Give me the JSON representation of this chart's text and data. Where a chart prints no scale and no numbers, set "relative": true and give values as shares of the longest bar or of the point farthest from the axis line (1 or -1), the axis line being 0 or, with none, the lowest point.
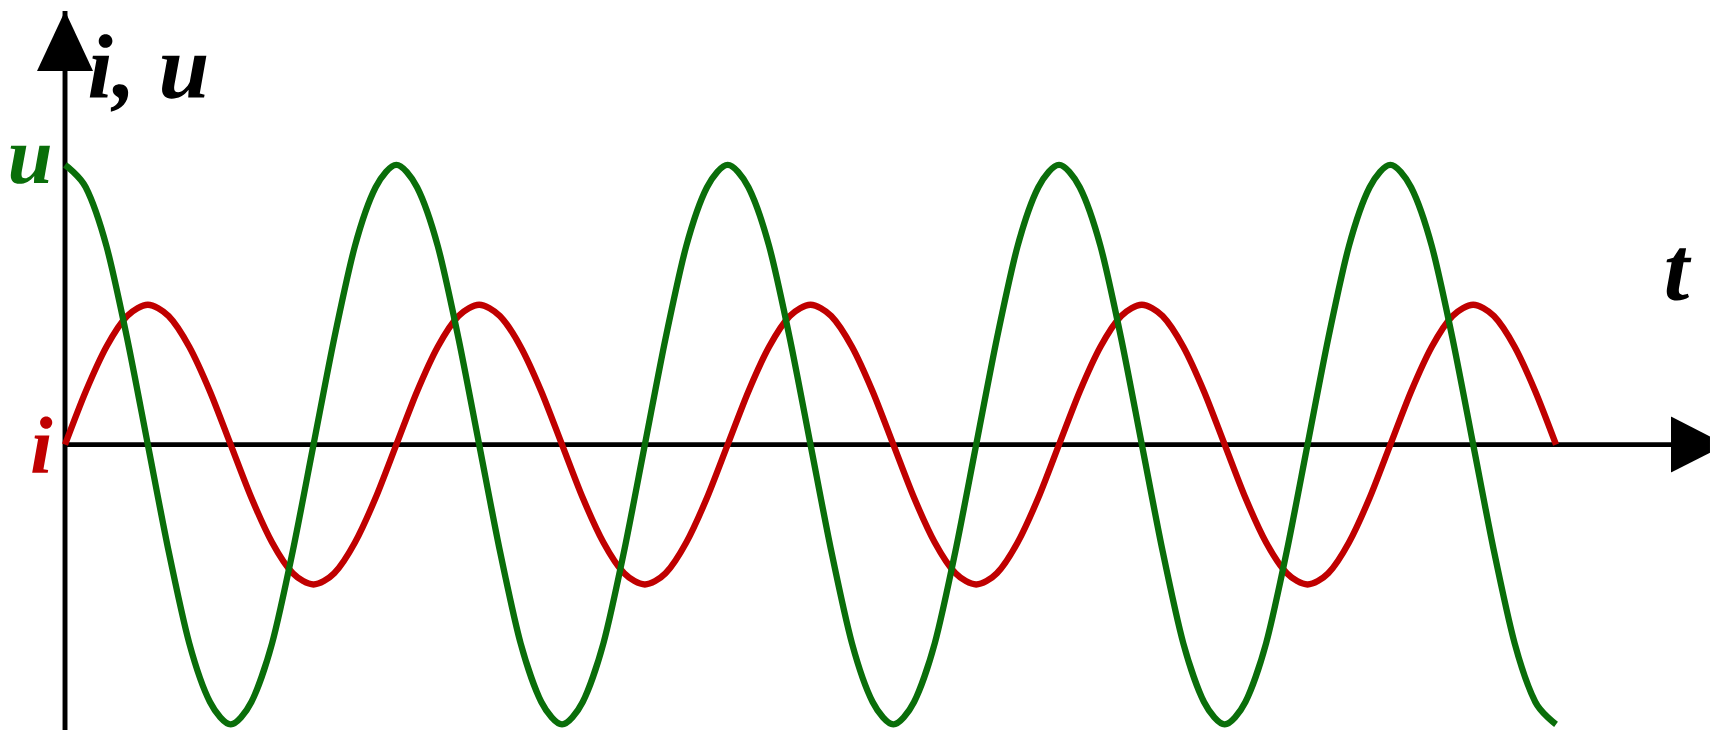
{
  "chart_data": {
    "type": "line",
    "relative": true,
    "xlabel": "t",
    "ylabel": "i, u",
    "marker": "none",
    "line_style": "solid",
    "categories": [
      null,
      null,
      null,
      null,
      null,
      null,
      null,
      null,
      null,
      null,
      null,
      null,
      null,
      null,
      null,
      null,
      null,
      null,
      null,
      null,
      null,
      null,
      null,
      null,
      null,
      null,
      null,
      null,
      null,
      null,
      null,
      null,
      null,
      null,
      null,
      null,
      null,
      null,
      null,
      null,
      null,
      null,
      null,
      null,
      null,
      null,
      null,
      null,
      null,
      null,
      null,
      null,
      null,
      null,
      null,
      null,
      null,
      null,
      null,
      null,
      null,
      null,
      null,
      null,
      null,
      null,
      null,
      null,
      null,
      null,
      null,
      null,
      null
    ],
    "series": [
      {
        "name": "i",
        "color": "#c00000",
        "values": [
          0,
          0.19,
          0.35,
          0.46,
          0.5,
          0.46,
          0.35,
          0.19,
          0,
          -0.19,
          -0.35,
          -0.46,
          -0.5,
          -0.46,
          -0.35,
          -0.19,
          0,
          0.19,
          0.35,
          0.46,
          0.5,
          0.46,
          0.35,
          0.19,
          0,
          -0.19,
          -0.35,
          -0.46,
          -0.5,
          -0.46,
          -0.35,
          -0.19,
          0,
          0.19,
          0.35,
          0.46,
          0.5,
          0.46,
          0.35,
          0.19,
          0,
          -0.19,
          -0.35,
          -0.46,
          -0.5,
          -0.46,
          -0.35,
          -0.19,
          0,
          0.19,
          0.35,
          0.46,
          0.5,
          0.46,
          0.35,
          0.19,
          0,
          -0.19,
          -0.35,
          -0.46,
          -0.5,
          -0.46,
          -0.35,
          -0.19,
          0,
          0.19,
          0.35,
          0.46,
          0.5,
          0.46,
          0.35,
          0.19,
          0
        ]
      },
      {
        "name": "u",
        "color": "#0a6e0a",
        "values": [
          1,
          0.92,
          0.71,
          0.38,
          0,
          -0.38,
          -0.71,
          -0.92,
          -1,
          -0.92,
          -0.71,
          -0.38,
          0,
          0.38,
          0.71,
          0.92,
          1,
          0.92,
          0.71,
          0.38,
          0,
          -0.38,
          -0.71,
          -0.92,
          -1,
          -0.92,
          -0.71,
          -0.38,
          0,
          0.38,
          0.71,
          0.92,
          1,
          0.92,
          0.71,
          0.38,
          0,
          -0.38,
          -0.71,
          -0.92,
          -1,
          -0.92,
          -0.71,
          -0.38,
          0,
          0.38,
          0.71,
          0.92,
          1,
          0.92,
          0.71,
          0.38,
          0,
          -0.38,
          -0.71,
          -0.92,
          -1,
          -0.92,
          -0.71,
          -0.38,
          0,
          0.38,
          0.71,
          0.92,
          1,
          0.92,
          0.71,
          0.38,
          0,
          -0.38,
          -0.71,
          -0.92,
          -1
        ]
      }
    ]
  }
}
